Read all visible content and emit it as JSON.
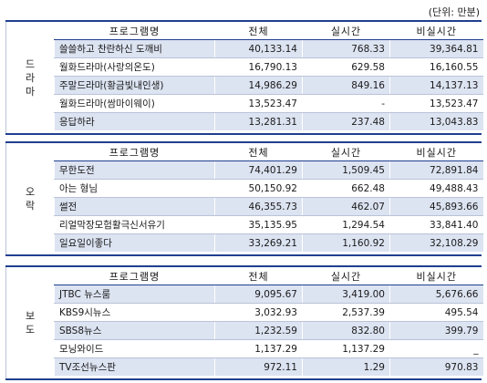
{
  "unit_label": "(단위: 만분)",
  "columns": [
    "프로그램명",
    "전체",
    "실시간",
    "비실시간"
  ],
  "sections": [
    {
      "category": "드라마",
      "rows": [
        [
          "쓸쓸하고 찬란하신 도깨비",
          "40,133.14",
          "768.33",
          "39,364.81"
        ],
        [
          "월화드라마(사랑의온도)",
          "16,790.13",
          "629.58",
          "16,160.55"
        ],
        [
          "주말드라마(황금빛내인생)",
          "14,986.29",
          "849.16",
          "14,137.13"
        ],
        [
          "월화드라마(쌈마이웨이)",
          "13,523.47",
          "-",
          "13,523.47"
        ],
        [
          "응답하라",
          "13,281.31",
          "237.48",
          "13,043.83"
        ]
      ]
    },
    {
      "category": "오락",
      "rows": [
        [
          "무한도전",
          "74,401.29",
          "1,509.45",
          "72,891.84"
        ],
        [
          "아는 형님",
          "50,150.92",
          "662.48",
          "49,488.43"
        ],
        [
          "썰전",
          "46,355.73",
          "462.07",
          "45,893.66"
        ],
        [
          "리얼막장모험활극신서유기",
          "35,135.95",
          "1,294.54",
          "33,841.40"
        ],
        [
          "일요일이좋다",
          "33,269.21",
          "1,160.92",
          "32,108.29"
        ]
      ]
    },
    {
      "category": "보도",
      "rows": [
        [
          "JTBC 뉴스룸",
          "9,095.67",
          "3,419.00",
          "5,676.66"
        ],
        [
          "KBS9시뉴스",
          "3,032.93",
          "2,537.39",
          "495.54"
        ],
        [
          "SBS8뉴스",
          "1,232.59",
          "832.80",
          "399.79"
        ],
        [
          "모닝와이드",
          "1,137.29",
          "1,137.29",
          "_"
        ],
        [
          "TV조선뉴스판",
          "972.11",
          "1.29",
          "970.83"
        ]
      ]
    }
  ]
}
